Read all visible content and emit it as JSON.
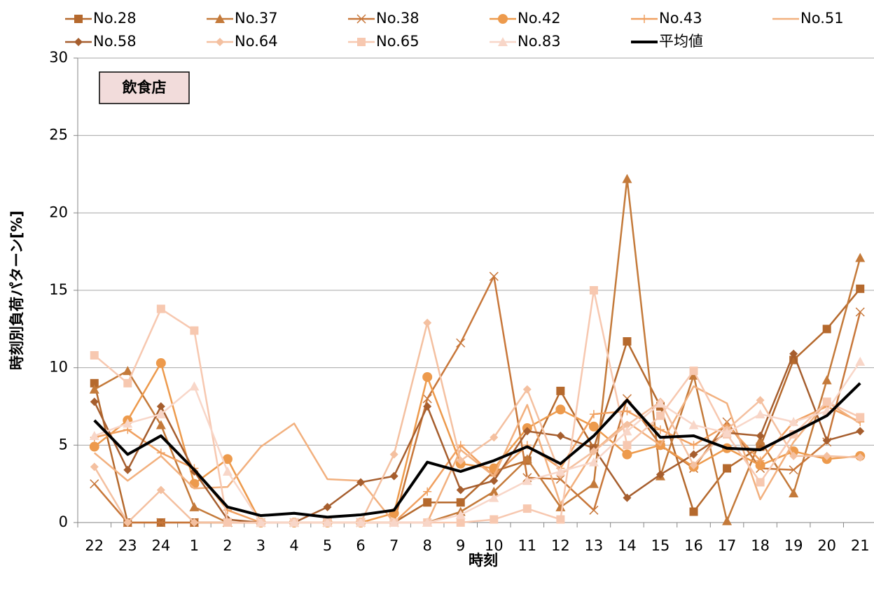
{
  "chart_data": {
    "type": "line",
    "annotation": "飲食店",
    "xlabel": "時刻",
    "ylabel": "時刻別負荷パターン[%]",
    "categories": [
      "22",
      "23",
      "24",
      "1",
      "2",
      "3",
      "4",
      "5",
      "6",
      "7",
      "8",
      "9",
      "10",
      "11",
      "12",
      "13",
      "14",
      "15",
      "16",
      "17",
      "18",
      "19",
      "20",
      "21"
    ],
    "ylim": [
      0,
      30
    ],
    "yticks": [
      0,
      5,
      10,
      15,
      20,
      25,
      30
    ],
    "grid": true,
    "legend": "top",
    "series": [
      {
        "name": "No.28",
        "color": "#b5692d",
        "marker": "square",
        "values": [
          9.0,
          0,
          0,
          0,
          0,
          0,
          0,
          0,
          0,
          0,
          1.3,
          1.3,
          3.3,
          4.0,
          8.5,
          4.8,
          11.7,
          7.5,
          0.7,
          3.5,
          4.9,
          10.5,
          12.5,
          15.1
        ]
      },
      {
        "name": "No.37",
        "color": "#c47a3a",
        "marker": "triangle",
        "values": [
          8.6,
          9.8,
          6.3,
          1.0,
          0,
          0,
          0,
          0,
          0,
          0,
          0,
          0.7,
          2.0,
          4.1,
          1.0,
          2.5,
          22.2,
          3.0,
          9.5,
          0.1,
          5.3,
          1.9,
          9.2,
          17.1
        ]
      },
      {
        "name": "No.38",
        "color": "#c8773a",
        "marker": "x",
        "values": [
          2.5,
          0,
          0,
          0,
          0,
          0,
          0,
          0,
          0,
          0,
          8.0,
          11.6,
          15.9,
          2.9,
          2.8,
          0.8,
          8.0,
          5.0,
          3.5,
          6.5,
          3.5,
          3.4,
          5.2,
          13.6
        ]
      },
      {
        "name": "No.42",
        "color": "#ed9a4c",
        "marker": "circle",
        "values": [
          4.9,
          6.6,
          10.3,
          2.5,
          4.1,
          0,
          0,
          0,
          0,
          0.6,
          9.4,
          3.8,
          3.5,
          6.1,
          7.3,
          6.2,
          4.4,
          5.0,
          3.6,
          4.8,
          3.7,
          4.6,
          4.1,
          4.3
        ]
      },
      {
        "name": "No.43",
        "color": "#f0a060",
        "marker": "plus",
        "values": [
          5.5,
          6.0,
          4.5,
          3.5,
          0.8,
          0,
          0,
          0,
          0,
          0,
          2.0,
          5.0,
          3.0,
          5.0,
          3.5,
          7.0,
          7.2,
          6.0,
          5.0,
          6.3,
          4.0,
          6.5,
          7.5,
          6.5
        ]
      },
      {
        "name": "No.51",
        "color": "#f2b07e",
        "marker": "none",
        "values": [
          4.5,
          2.7,
          4.3,
          2.2,
          2.3,
          4.9,
          6.4,
          2.8,
          2.7,
          0,
          0,
          4.7,
          3.0,
          7.6,
          1.2,
          4.6,
          6.5,
          5.0,
          8.8,
          7.7,
          1.5,
          5.2,
          7.8,
          6.4
        ]
      },
      {
        "name": "No.58",
        "color": "#a65e2e",
        "marker": "diamond",
        "values": [
          7.8,
          3.4,
          7.5,
          3.3,
          0.2,
          0,
          0,
          1.0,
          2.6,
          3.0,
          7.5,
          2.1,
          2.7,
          5.9,
          5.6,
          4.8,
          1.6,
          3.1,
          4.4,
          5.8,
          5.6,
          10.9,
          5.3,
          5.9
        ]
      },
      {
        "name": "No.64",
        "color": "#f4c0a0",
        "marker": "diamond",
        "values": [
          3.6,
          0,
          2.1,
          0,
          0,
          0,
          0,
          0,
          0,
          4.4,
          12.9,
          4.0,
          5.5,
          8.6,
          3.1,
          4.6,
          6.3,
          7.8,
          3.7,
          6.0,
          7.9,
          4.3,
          4.3,
          4.2
        ]
      },
      {
        "name": "No.65",
        "color": "#f7c8b0",
        "marker": "square",
        "values": [
          10.8,
          9.0,
          13.8,
          12.4,
          0,
          0,
          0,
          0,
          0,
          0,
          0,
          0,
          0.2,
          0.9,
          0.2,
          15.0,
          5.0,
          6.9,
          9.8,
          5.7,
          2.6,
          5.7,
          7.8,
          6.8
        ]
      },
      {
        "name": "No.83",
        "color": "#f8d6c8",
        "marker": "triangle",
        "values": [
          5.6,
          6.4,
          7.0,
          8.8,
          3.3,
          0,
          0,
          0,
          0,
          0,
          0,
          0.5,
          1.6,
          2.7,
          3.3,
          3.9,
          5.9,
          7.7,
          6.3,
          5.8,
          7.0,
          6.5,
          7.2,
          10.4
        ]
      },
      {
        "name": "平均値",
        "color": "#000000",
        "marker": "none",
        "width": 4,
        "values": [
          6.6,
          4.4,
          5.6,
          3.4,
          1.0,
          0.45,
          0.6,
          0.35,
          0.5,
          0.8,
          3.9,
          3.3,
          4.0,
          4.9,
          3.8,
          5.6,
          7.9,
          5.5,
          5.6,
          4.8,
          4.7,
          5.8,
          6.9,
          9.0
        ]
      }
    ]
  }
}
